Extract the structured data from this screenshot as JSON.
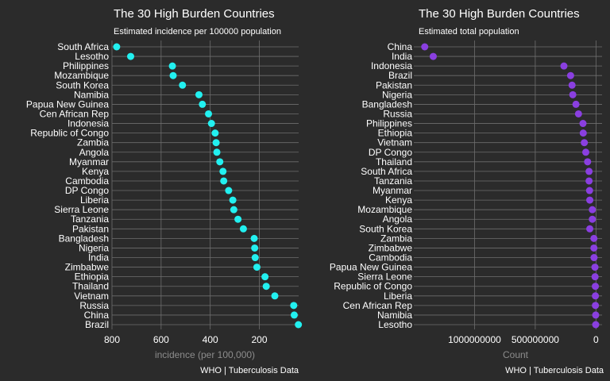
{
  "chart_data": [
    {
      "type": "scatter",
      "title": "The 30 High Burden Countries",
      "subtitle": "Estimated incidence per 100000 population",
      "xlabel": "incidence (per 100,000)",
      "caption": "WHO | Tuberculosis Data",
      "x_reversed": true,
      "xlim": [
        800,
        40
      ],
      "xticks": [
        800,
        600,
        400,
        200
      ],
      "color": "#22f0f0",
      "grid": true,
      "categories": [
        "South Africa",
        "Lesotho",
        "Philippines",
        "Mozambique",
        "South Korea",
        "Namibia",
        "Papua New Guinea",
        "Cen African Rep",
        "Indonesia",
        "Republic of Congo",
        "Zambia",
        "Angola",
        "Myanmar",
        "Kenya",
        "Cambodia",
        "DP Congo",
        "Liberia",
        "Sierra Leone",
        "Tanzania",
        "Pakistan",
        "Bangladesh",
        "Nigeria",
        "India",
        "Zimbabwe",
        "Ethiopia",
        "Thailand",
        "Vietnam",
        "Russia",
        "China",
        "Brazil"
      ],
      "values": [
        781,
        724,
        554,
        551,
        513,
        446,
        432,
        407,
        395,
        380,
        376,
        373,
        361,
        348,
        345,
        325,
        308,
        304,
        287,
        265,
        221,
        219,
        217,
        210,
        177,
        172,
        137,
        60,
        58,
        41
      ]
    },
    {
      "type": "scatter",
      "title": "The 30 High Burden Countries",
      "subtitle": "Estimated total population",
      "xlabel": "Count",
      "caption": "WHO | Tuberculosis Data",
      "x_reversed": true,
      "xlim": [
        1500000000,
        -50000000
      ],
      "xticks": [
        1000000000,
        500000000,
        0
      ],
      "xtick_labels": [
        "1000000000",
        "500000000",
        "0"
      ],
      "color": "#8a3fe0",
      "grid": true,
      "categories": [
        "China",
        "India",
        "Indonesia",
        "Brazil",
        "Pakistan",
        "Nigeria",
        "Bangladesh",
        "Russia",
        "Philippines",
        "Ethiopia",
        "Vietnam",
        "DP Congo",
        "Thailand",
        "South Africa",
        "Tanzania",
        "Myanmar",
        "Kenya",
        "Mozambique",
        "Angola",
        "South Korea",
        "Zambia",
        "Zimbabwe",
        "Cambodia",
        "Papua New Guinea",
        "Sierra Leone",
        "Republic of Congo",
        "Liberia",
        "Cen African Rep",
        "Namibia",
        "Lesotho"
      ],
      "values": [
        1410000000,
        1340000000,
        264000000,
        209000000,
        197000000,
        191000000,
        165000000,
        144000000,
        107000000,
        105000000,
        96000000,
        84000000,
        69000000,
        57000000,
        57000000,
        53000000,
        51000000,
        30000000,
        30000000,
        51000000,
        17000000,
        17000000,
        16000000,
        8500000,
        7600000,
        5300000,
        4800000,
        4700000,
        2500000,
        2300000
      ]
    }
  ]
}
